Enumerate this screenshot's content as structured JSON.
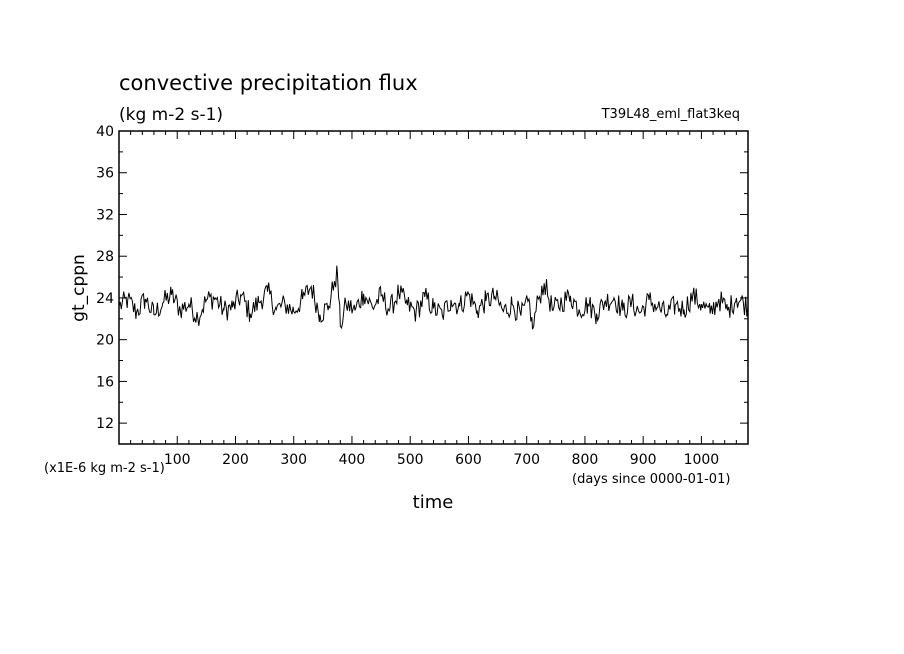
{
  "chart_data": {
    "type": "line",
    "title": "convective precipitation flux",
    "units": "(kg m-2 s-1)",
    "run_name": "T39L48_eml_flat3keq",
    "ylabel": "gt_cppn",
    "ylabel_units": "(x1E-6 kg m-2 s-1)",
    "xlabel": "time",
    "xlabel_units": "(days since 0000-01-01)",
    "xlim": [
      0,
      1080
    ],
    "ylim": [
      10,
      40
    ],
    "x_ticks": [
      100,
      200,
      300,
      400,
      500,
      600,
      700,
      800,
      900,
      1000
    ],
    "y_ticks": [
      12,
      16,
      20,
      24,
      28,
      32,
      36,
      40
    ],
    "line_color": "#000000",
    "series": [
      {
        "x": [
          0,
          15,
          30,
          45,
          60,
          75,
          90,
          105,
          120,
          135,
          150,
          165,
          180,
          195,
          210,
          225,
          240,
          255,
          270,
          285,
          300,
          315,
          330,
          345,
          360,
          370,
          375,
          380,
          390,
          405,
          420,
          435,
          450,
          465,
          480,
          495,
          510,
          525,
          540,
          555,
          570,
          585,
          600,
          615,
          630,
          645,
          660,
          675,
          690,
          705,
          710,
          720,
          730,
          745,
          760,
          775,
          790,
          805,
          820,
          835,
          850,
          865,
          880,
          895,
          910,
          925,
          940,
          955,
          970,
          985,
          1000,
          1015,
          1030,
          1045,
          1060,
          1080
        ],
        "y": [
          23.2,
          23.8,
          22.6,
          23.9,
          22.4,
          23.5,
          24.3,
          22.9,
          23.4,
          22.2,
          23.8,
          24.0,
          22.8,
          23.1,
          24.2,
          22.5,
          23.6,
          24.6,
          22.9,
          23.4,
          22.7,
          23.9,
          25.1,
          22.4,
          23.2,
          25.6,
          26.4,
          21.3,
          23.4,
          22.8,
          24.4,
          23.1,
          24.2,
          22.9,
          24.5,
          23.3,
          22.6,
          24.1,
          23.0,
          22.4,
          23.8,
          23.2,
          24.4,
          22.8,
          23.7,
          24.1,
          22.7,
          23.4,
          22.3,
          23.6,
          21.0,
          23.9,
          25.4,
          22.8,
          23.6,
          24.2,
          22.9,
          23.4,
          22.5,
          23.7,
          24.0,
          22.8,
          23.5,
          22.6,
          23.8,
          23.1,
          22.4,
          23.3,
          22.9,
          24.2,
          23.4,
          22.5,
          23.9,
          22.8,
          24.0,
          23.2
        ]
      }
    ]
  }
}
